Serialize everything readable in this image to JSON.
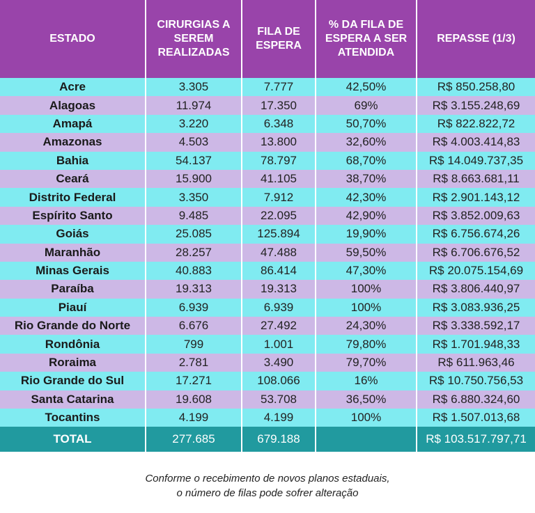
{
  "headers": [
    "ESTADO",
    "CIRURGIAS A SEREM REALIZADAS",
    "FILA DE ESPERA",
    "% DA FILA DE ESPERA A SER ATENDIDA",
    "REPASSE (1/3)"
  ],
  "rows": [
    [
      "Acre",
      "3.305",
      "7.777",
      "42,50%",
      "R$ 850.258,80"
    ],
    [
      "Alagoas",
      "11.974",
      "17.350",
      "69%",
      "R$ 3.155.248,69"
    ],
    [
      "Amapá",
      "3.220",
      "6.348",
      "50,70%",
      "R$ 822.822,72"
    ],
    [
      "Amazonas",
      "4.503",
      "13.800",
      "32,60%",
      "R$ 4.003.414,83"
    ],
    [
      "Bahia",
      "54.137",
      "78.797",
      "68,70%",
      "R$ 14.049.737,35"
    ],
    [
      "Ceará",
      "15.900",
      "41.105",
      "38,70%",
      "R$ 8.663.681,11"
    ],
    [
      "Distrito Federal",
      "3.350",
      "7.912",
      "42,30%",
      "R$ 2.901.143,12"
    ],
    [
      "Espírito Santo",
      "9.485",
      "22.095",
      "42,90%",
      "R$ 3.852.009,63"
    ],
    [
      "Goiás",
      "25.085",
      "125.894",
      "19,90%",
      "R$ 6.756.674,26"
    ],
    [
      "Maranhão",
      "28.257",
      "47.488",
      "59,50%",
      "R$ 6.706.676,52"
    ],
    [
      "Minas Gerais",
      "40.883",
      "86.414",
      "47,30%",
      "R$ 20.075.154,69"
    ],
    [
      "Paraíba",
      "19.313",
      "19.313",
      "100%",
      "R$ 3.806.440,97"
    ],
    [
      "Piauí",
      "6.939",
      "6.939",
      "100%",
      "R$ 3.083.936,25"
    ],
    [
      "Rio Grande do Norte",
      "6.676",
      "27.492",
      "24,30%",
      "R$ 3.338.592,17"
    ],
    [
      "Rondônia",
      "799",
      "1.001",
      "79,80%",
      "R$ 1.701.948,33"
    ],
    [
      "Roraima",
      "2.781",
      "3.490",
      "79,70%",
      "R$ 611.963,46"
    ],
    [
      "Rio Grande do Sul",
      "17.271",
      "108.066",
      "16%",
      "R$ 10.750.756,53"
    ],
    [
      "Santa Catarina",
      "19.608",
      "53.708",
      "36,50%",
      "R$ 6.880.324,60"
    ],
    [
      "Tocantins",
      "4.199",
      "4.199",
      "100%",
      "R$ 1.507.013,68"
    ]
  ],
  "total": [
    "TOTAL",
    "277.685",
    "679.188",
    "",
    "R$ 103.517.797,71"
  ],
  "caption": [
    "Conforme o recebimento de novos planos estaduais,",
    "o número de filas pode sofrer alteração"
  ],
  "colors": {
    "header": "#9944aa",
    "row_odd": "#80ebf1",
    "row_even": "#cdb8e6",
    "total": "#219a9f"
  }
}
